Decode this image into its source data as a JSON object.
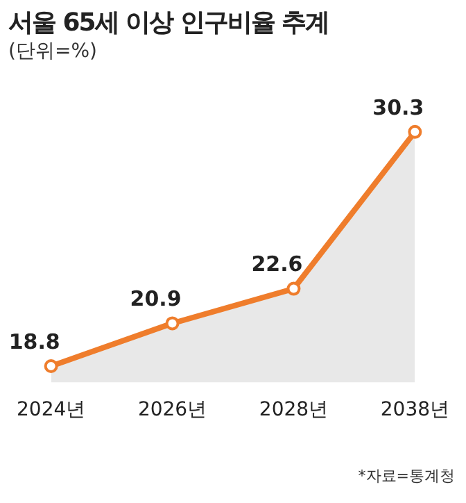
{
  "chart_data": {
    "type": "area",
    "title": "서울 65세 이상 인구비율 추계",
    "subtitle": "(단위=%)",
    "annotations": [
      "*자료=통계청"
    ],
    "categories": [
      "2024년",
      "2026년",
      "2028년",
      "2038년"
    ],
    "series": [
      {
        "color": "#ef7d2c",
        "values": [
          18.8,
          20.9,
          22.6,
          30.3
        ]
      }
    ],
    "data_labels": true,
    "marker": "circle",
    "grid": false,
    "legend": false
  }
}
